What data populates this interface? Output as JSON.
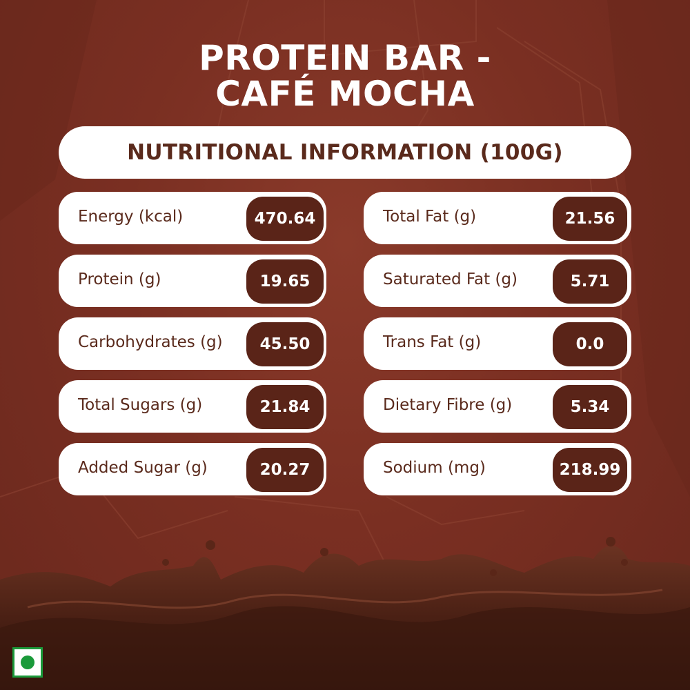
{
  "title": {
    "line1": "PROTEIN BAR -",
    "line2": "CAFÉ MOCHA"
  },
  "header": "NUTRITIONAL INFORMATION (100G)",
  "nutrients_left": [
    {
      "label": "Energy (kcal)",
      "value": "470.64"
    },
    {
      "label": "Protein (g)",
      "value": "19.65"
    },
    {
      "label": "Carbohydrates (g)",
      "value": "45.50"
    },
    {
      "label": "Total Sugars (g)",
      "value": "21.84"
    },
    {
      "label": "Added Sugar (g)",
      "value": "20.27"
    }
  ],
  "nutrients_right": [
    {
      "label": "Total Fat (g)",
      "value": "21.56"
    },
    {
      "label": "Saturated Fat (g)",
      "value": "5.71"
    },
    {
      "label": "Trans Fat (g)",
      "value": "0.0"
    },
    {
      "label": "Dietary Fibre (g)",
      "value": "5.34"
    },
    {
      "label": "Sodium (mg)",
      "value": "218.99"
    }
  ],
  "colors": {
    "background": "#7a2f22",
    "text_brown": "#5a2a1c",
    "value_pill": "#5a2418",
    "veg_green": "#1a9a3a"
  },
  "icons": {
    "veg_mark": "vegetarian-mark-icon",
    "splash": "chocolate-splash"
  }
}
